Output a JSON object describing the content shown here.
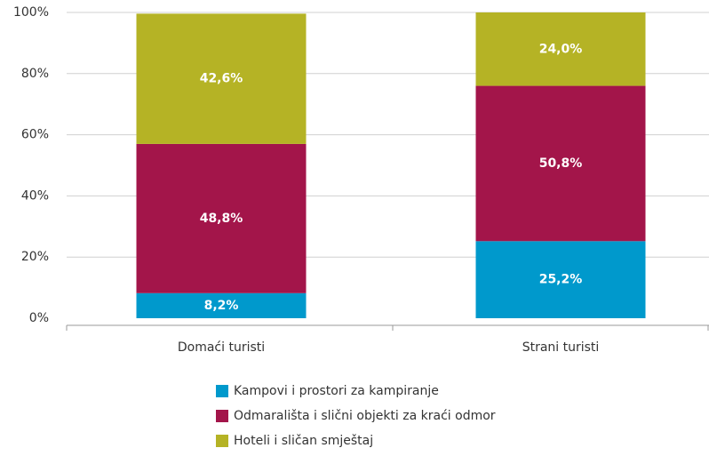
{
  "chart_data": {
    "type": "stacked_bar",
    "categories": [
      "Domaći turisti",
      "Strani turisti"
    ],
    "series": [
      {
        "name": "Kampovi i prostori za kampiranje",
        "color": "#0099cc",
        "values": [
          8.2,
          25.2
        ],
        "value_labels": [
          "8,2%",
          "25,2%"
        ]
      },
      {
        "name": "Odmarališta i slični objekti za kraći odmor",
        "color": "#a3154a",
        "values": [
          48.8,
          50.8
        ],
        "value_labels": [
          "48,8%",
          "50,8%"
        ]
      },
      {
        "name": "Hoteli i sličan smještaj",
        "color": "#b5b325",
        "values": [
          42.6,
          24.0
        ],
        "value_labels": [
          "42,6%",
          "24,0%"
        ]
      }
    ],
    "ylim": [
      0,
      100
    ],
    "yticks": [
      {
        "value": 0,
        "label": "0%"
      },
      {
        "value": 20,
        "label": "20%"
      },
      {
        "value": 40,
        "label": "40%"
      },
      {
        "value": 60,
        "label": "60%"
      },
      {
        "value": 80,
        "label": "80%"
      },
      {
        "value": 100,
        "label": "100%"
      }
    ],
    "grid": true
  }
}
